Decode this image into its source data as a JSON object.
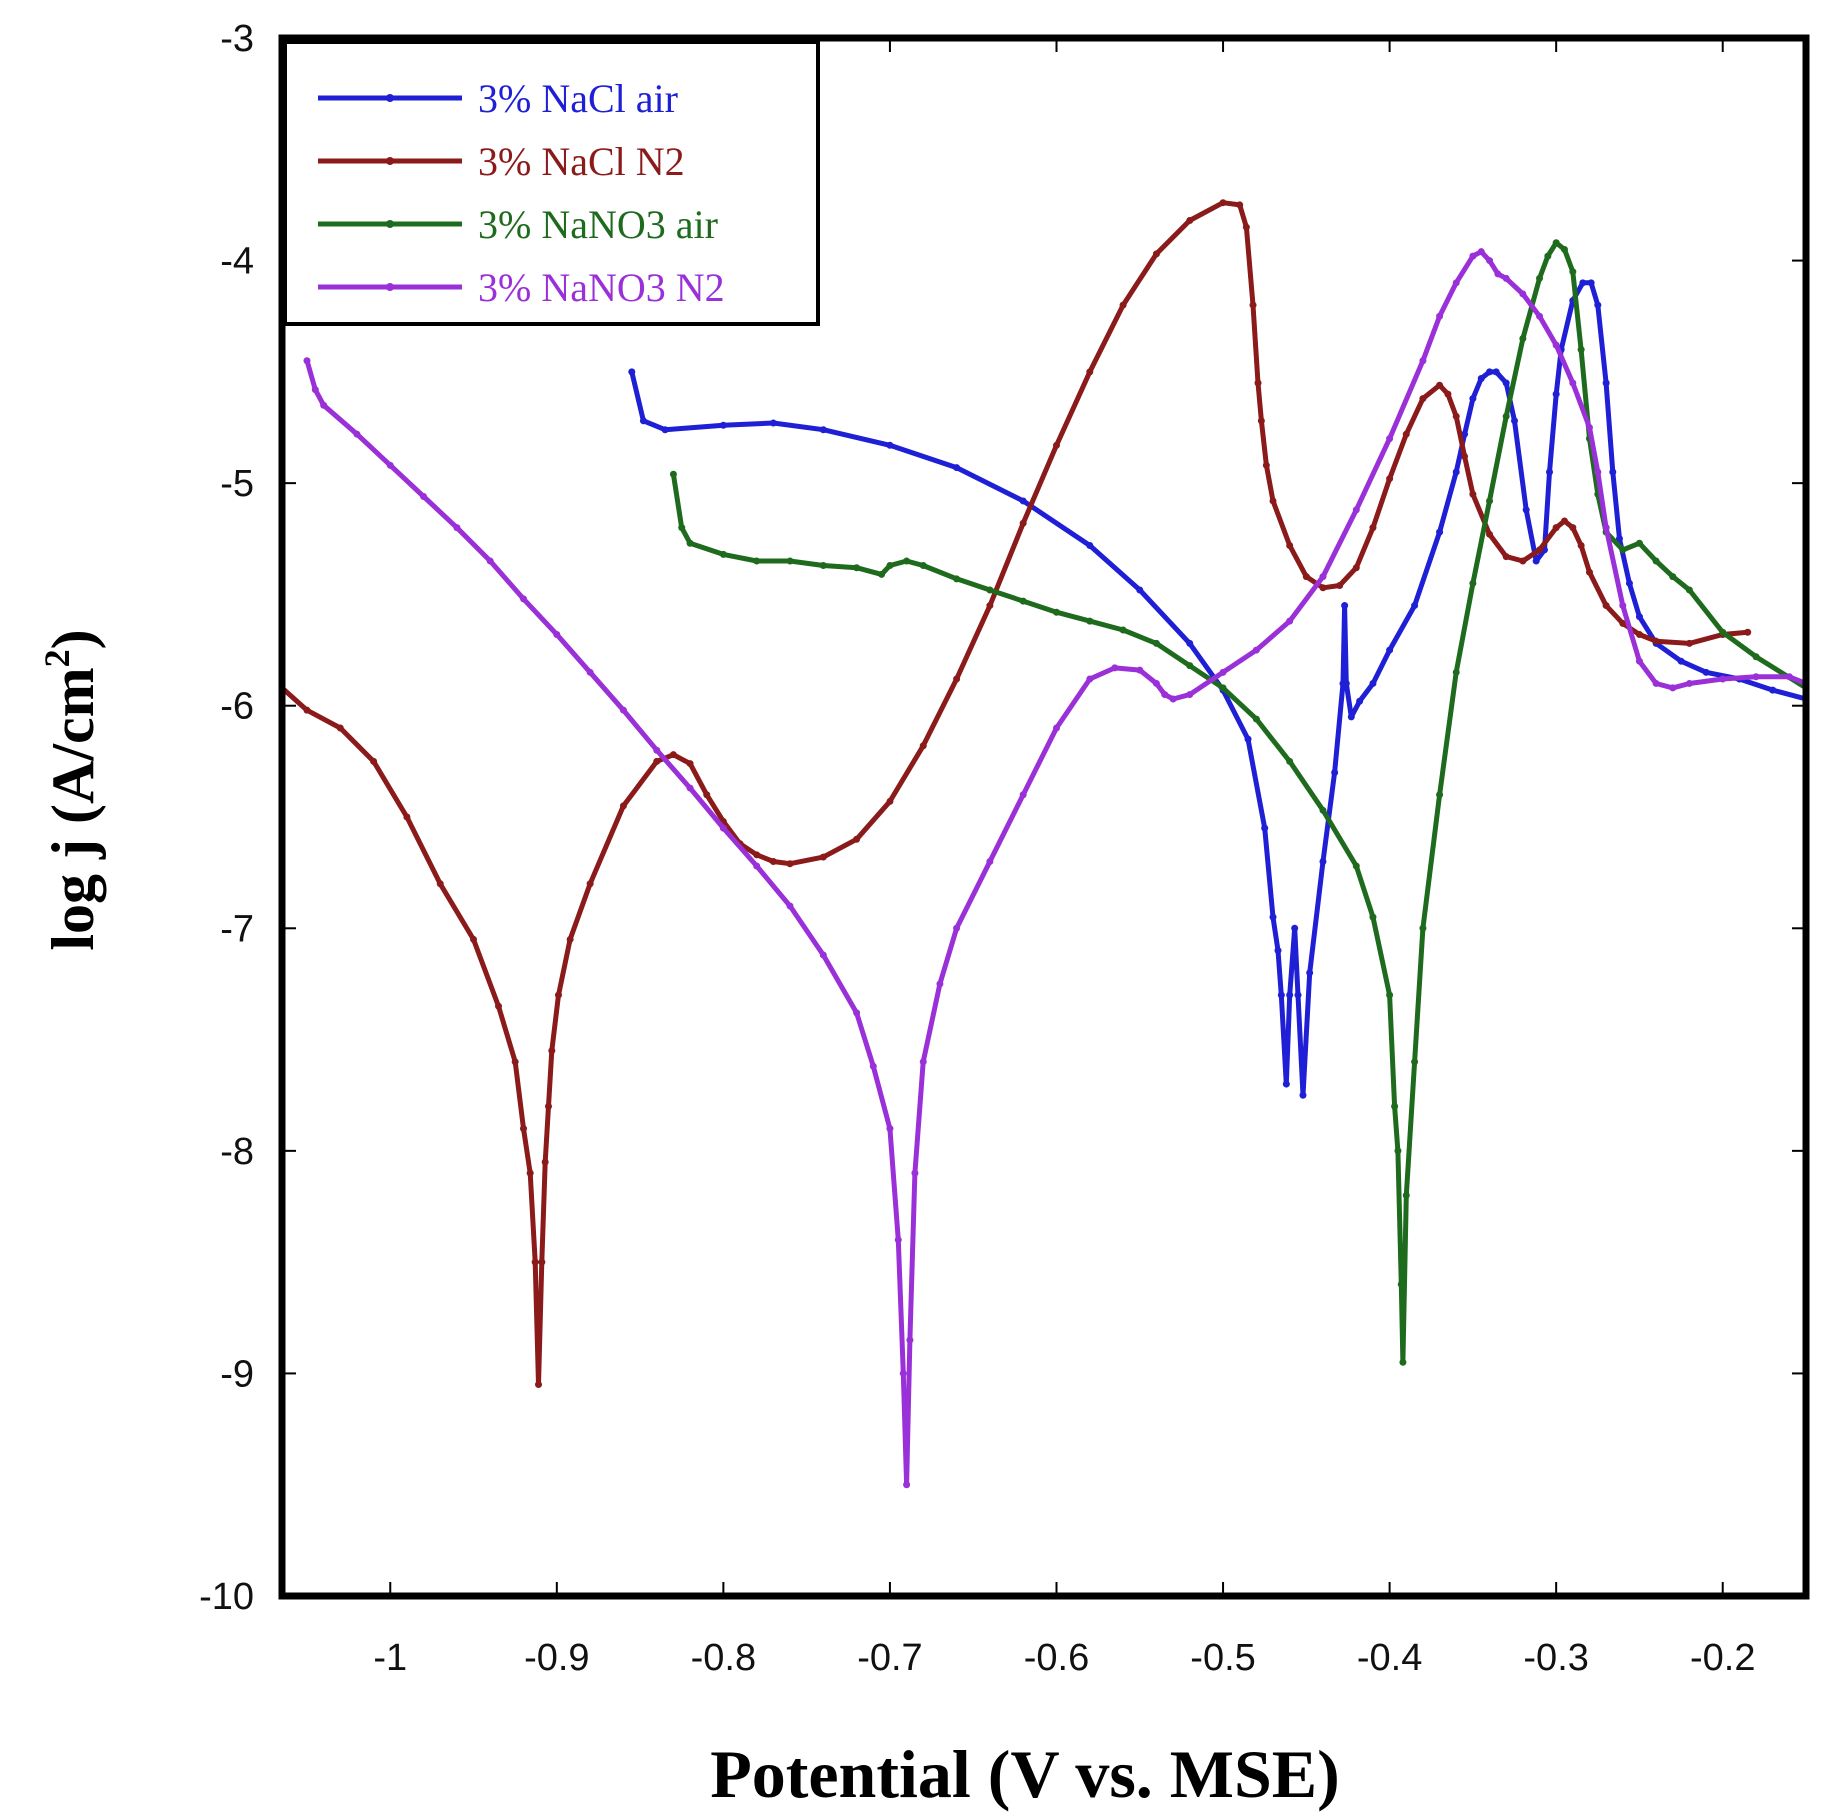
{
  "chart_data": {
    "type": "line",
    "title": "",
    "xlabel": "Potential (V vs. MSE)",
    "ylabel_main": "log j (A/cm",
    "ylabel_sup": "2",
    "ylabel_end": ")",
    "xlim": [
      -1.065,
      -0.15
    ],
    "ylim": [
      -10,
      -3
    ],
    "xticks": [
      -1,
      -0.9,
      -0.8,
      -0.7,
      -0.6,
      -0.5,
      -0.4,
      -0.3,
      -0.2
    ],
    "yticks": [
      -10,
      -9,
      -8,
      -7,
      -6,
      -5,
      -4,
      -3
    ],
    "xtick_labels": [
      "-1",
      "-0.9",
      "-0.8",
      "-0.7",
      "-0.6",
      "-0.5",
      "-0.4",
      "-0.3",
      "-0.2"
    ],
    "ytick_labels": [
      "-10",
      "-9",
      "-8",
      "-7",
      "-6",
      "-5",
      "-4",
      "-3"
    ],
    "legend_position": "top-left",
    "series": [
      {
        "name": "3% NaCl air",
        "color": "#1f1fd6",
        "x": [
          -0.855,
          -0.848,
          -0.835,
          -0.8,
          -0.77,
          -0.74,
          -0.7,
          -0.66,
          -0.62,
          -0.58,
          -0.55,
          -0.52,
          -0.5,
          -0.485,
          -0.475,
          -0.47,
          -0.467,
          -0.465,
          -0.462,
          -0.46,
          -0.457,
          -0.455,
          -0.452,
          -0.448,
          -0.44,
          -0.433,
          -0.428,
          -0.427,
          -0.426,
          -0.423,
          -0.418,
          -0.41,
          -0.4,
          -0.385,
          -0.37,
          -0.36,
          -0.355,
          -0.35,
          -0.345,
          -0.34,
          -0.336,
          -0.33,
          -0.325,
          -0.318,
          -0.312,
          -0.307,
          -0.304,
          -0.3,
          -0.297,
          -0.29,
          -0.284,
          -0.279,
          -0.275,
          -0.27,
          -0.266,
          -0.262,
          -0.256,
          -0.25,
          -0.24,
          -0.225,
          -0.21,
          -0.19,
          -0.17,
          -0.15
        ],
        "y": [
          -4.5,
          -4.72,
          -4.76,
          -4.74,
          -4.73,
          -4.76,
          -4.83,
          -4.93,
          -5.08,
          -5.28,
          -5.48,
          -5.72,
          -5.93,
          -6.15,
          -6.55,
          -6.95,
          -7.1,
          -7.3,
          -7.7,
          -7.3,
          -7.0,
          -7.3,
          -7.75,
          -7.2,
          -6.7,
          -6.3,
          -5.9,
          -5.55,
          -5.9,
          -6.05,
          -5.98,
          -5.9,
          -5.75,
          -5.55,
          -5.22,
          -4.95,
          -4.78,
          -4.62,
          -4.53,
          -4.5,
          -4.5,
          -4.55,
          -4.72,
          -5.12,
          -5.35,
          -5.3,
          -4.95,
          -4.6,
          -4.4,
          -4.18,
          -4.1,
          -4.1,
          -4.2,
          -4.55,
          -4.95,
          -5.25,
          -5.45,
          -5.6,
          -5.72,
          -5.8,
          -5.85,
          -5.88,
          -5.93,
          -5.97
        ]
      },
      {
        "name": "3% NaCl N2",
        "color": "#8b1a1a",
        "x": [
          -1.065,
          -1.05,
          -1.03,
          -1.01,
          -0.99,
          -0.97,
          -0.95,
          -0.935,
          -0.925,
          -0.92,
          -0.916,
          -0.913,
          -0.911,
          -0.909,
          -0.907,
          -0.905,
          -0.903,
          -0.899,
          -0.892,
          -0.88,
          -0.86,
          -0.84,
          -0.83,
          -0.82,
          -0.81,
          -0.8,
          -0.79,
          -0.78,
          -0.77,
          -0.76,
          -0.74,
          -0.72,
          -0.7,
          -0.68,
          -0.66,
          -0.64,
          -0.62,
          -0.6,
          -0.58,
          -0.56,
          -0.54,
          -0.52,
          -0.5,
          -0.49,
          -0.486,
          -0.482,
          -0.479,
          -0.477,
          -0.474,
          -0.47,
          -0.46,
          -0.45,
          -0.44,
          -0.43,
          -0.42,
          -0.41,
          -0.4,
          -0.39,
          -0.38,
          -0.37,
          -0.365,
          -0.36,
          -0.355,
          -0.35,
          -0.34,
          -0.33,
          -0.32,
          -0.31,
          -0.3,
          -0.295,
          -0.29,
          -0.285,
          -0.28,
          -0.27,
          -0.26,
          -0.25,
          -0.24,
          -0.22,
          -0.2,
          -0.185
        ],
        "y": [
          -5.92,
          -6.02,
          -6.1,
          -6.25,
          -6.5,
          -6.8,
          -7.05,
          -7.35,
          -7.6,
          -7.9,
          -8.1,
          -8.5,
          -9.05,
          -8.5,
          -8.05,
          -7.8,
          -7.55,
          -7.3,
          -7.05,
          -6.8,
          -6.45,
          -6.25,
          -6.22,
          -6.26,
          -6.4,
          -6.52,
          -6.62,
          -6.67,
          -6.7,
          -6.71,
          -6.68,
          -6.6,
          -6.43,
          -6.18,
          -5.88,
          -5.55,
          -5.18,
          -4.83,
          -4.5,
          -4.2,
          -3.97,
          -3.82,
          -3.74,
          -3.75,
          -3.85,
          -4.2,
          -4.55,
          -4.72,
          -4.92,
          -5.08,
          -5.28,
          -5.42,
          -5.47,
          -5.46,
          -5.38,
          -5.2,
          -4.98,
          -4.78,
          -4.62,
          -4.56,
          -4.6,
          -4.7,
          -4.88,
          -5.05,
          -5.23,
          -5.33,
          -5.35,
          -5.3,
          -5.2,
          -5.17,
          -5.2,
          -5.28,
          -5.4,
          -5.55,
          -5.63,
          -5.68,
          -5.71,
          -5.72,
          -5.68,
          -5.67
        ]
      },
      {
        "name": "3% NaNO3 air",
        "color": "#1e6b1e",
        "x": [
          -0.83,
          -0.825,
          -0.82,
          -0.8,
          -0.78,
          -0.76,
          -0.74,
          -0.72,
          -0.705,
          -0.7,
          -0.69,
          -0.68,
          -0.66,
          -0.64,
          -0.62,
          -0.6,
          -0.58,
          -0.56,
          -0.54,
          -0.52,
          -0.5,
          -0.48,
          -0.46,
          -0.44,
          -0.42,
          -0.41,
          -0.4,
          -0.397,
          -0.395,
          -0.393,
          -0.392,
          -0.39,
          -0.385,
          -0.38,
          -0.37,
          -0.36,
          -0.35,
          -0.34,
          -0.33,
          -0.32,
          -0.31,
          -0.305,
          -0.3,
          -0.295,
          -0.29,
          -0.285,
          -0.28,
          -0.275,
          -0.27,
          -0.26,
          -0.25,
          -0.24,
          -0.23,
          -0.22,
          -0.2,
          -0.18,
          -0.15
        ],
        "y": [
          -4.96,
          -5.2,
          -5.27,
          -5.32,
          -5.35,
          -5.35,
          -5.37,
          -5.38,
          -5.41,
          -5.37,
          -5.35,
          -5.37,
          -5.43,
          -5.48,
          -5.53,
          -5.58,
          -5.62,
          -5.66,
          -5.72,
          -5.82,
          -5.92,
          -6.06,
          -6.25,
          -6.47,
          -6.72,
          -6.95,
          -7.3,
          -7.8,
          -8.0,
          -8.6,
          -8.95,
          -8.2,
          -7.6,
          -7.0,
          -6.4,
          -5.85,
          -5.45,
          -5.08,
          -4.7,
          -4.35,
          -4.08,
          -3.98,
          -3.92,
          -3.95,
          -4.05,
          -4.4,
          -4.8,
          -5.05,
          -5.22,
          -5.3,
          -5.27,
          -5.35,
          -5.42,
          -5.48,
          -5.67,
          -5.78,
          -5.92
        ]
      },
      {
        "name": "3% NaNO3 N2",
        "color": "#9a30d8",
        "x": [
          -1.05,
          -1.045,
          -1.04,
          -1.02,
          -1.0,
          -0.98,
          -0.96,
          -0.94,
          -0.92,
          -0.9,
          -0.88,
          -0.86,
          -0.84,
          -0.82,
          -0.8,
          -0.78,
          -0.76,
          -0.74,
          -0.72,
          -0.71,
          -0.7,
          -0.695,
          -0.692,
          -0.69,
          -0.688,
          -0.685,
          -0.68,
          -0.67,
          -0.66,
          -0.64,
          -0.62,
          -0.6,
          -0.58,
          -0.565,
          -0.55,
          -0.54,
          -0.535,
          -0.53,
          -0.52,
          -0.5,
          -0.48,
          -0.46,
          -0.44,
          -0.42,
          -0.4,
          -0.38,
          -0.37,
          -0.36,
          -0.35,
          -0.345,
          -0.34,
          -0.335,
          -0.33,
          -0.32,
          -0.31,
          -0.3,
          -0.29,
          -0.28,
          -0.275,
          -0.27,
          -0.26,
          -0.25,
          -0.24,
          -0.23,
          -0.22,
          -0.2,
          -0.18,
          -0.16,
          -0.15
        ],
        "y": [
          -4.45,
          -4.58,
          -4.65,
          -4.78,
          -4.92,
          -5.06,
          -5.2,
          -5.35,
          -5.52,
          -5.68,
          -5.85,
          -6.02,
          -6.2,
          -6.37,
          -6.55,
          -6.72,
          -6.9,
          -7.12,
          -7.38,
          -7.62,
          -7.9,
          -8.4,
          -9.0,
          -9.5,
          -8.85,
          -8.1,
          -7.6,
          -7.25,
          -7.0,
          -6.7,
          -6.4,
          -6.1,
          -5.88,
          -5.83,
          -5.84,
          -5.9,
          -5.95,
          -5.97,
          -5.95,
          -5.85,
          -5.75,
          -5.62,
          -5.42,
          -5.12,
          -4.8,
          -4.45,
          -4.25,
          -4.1,
          -3.98,
          -3.96,
          -4.0,
          -4.06,
          -4.08,
          -4.15,
          -4.25,
          -4.38,
          -4.55,
          -4.75,
          -4.95,
          -5.2,
          -5.55,
          -5.8,
          -5.9,
          -5.92,
          -5.9,
          -5.88,
          -5.87,
          -5.87,
          -5.9
        ]
      }
    ]
  }
}
